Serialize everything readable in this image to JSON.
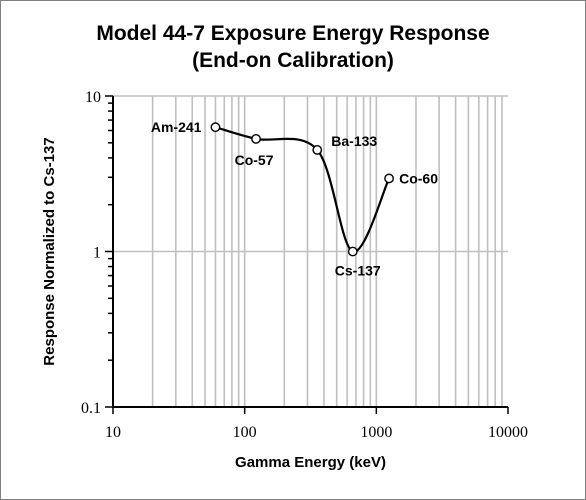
{
  "chart_data": {
    "type": "line",
    "title_line1": "Model 44-7 Exposure Energy Response",
    "title_line2": "(End-on Calibration)",
    "xlabel": "Gamma Energy (keV)",
    "ylabel": "Response Normalized to Cs-137",
    "x_scale": "log",
    "y_scale": "log",
    "xlim": [
      10,
      10000
    ],
    "ylim": [
      0.1,
      10
    ],
    "x_ticks": [
      10,
      100,
      1000,
      10000
    ],
    "x_tick_labels": [
      "10",
      "100",
      "1000",
      "10000"
    ],
    "y_ticks": [
      0.1,
      1,
      10
    ],
    "y_tick_labels": [
      "0.1",
      "1",
      "10"
    ],
    "grid": true,
    "smoothed": true,
    "line_color": "#000000",
    "grid_color": "#bfbfbf",
    "points": [
      {
        "label": "Am-241",
        "x": 60,
        "y": 6.3
      },
      {
        "label": "Co-57",
        "x": 122,
        "y": 5.3
      },
      {
        "label": "Ba-133",
        "x": 356,
        "y": 4.5
      },
      {
        "label": "Cs-137",
        "x": 662,
        "y": 1.0
      },
      {
        "label": "Co-60",
        "x": 1250,
        "y": 2.95
      }
    ]
  }
}
